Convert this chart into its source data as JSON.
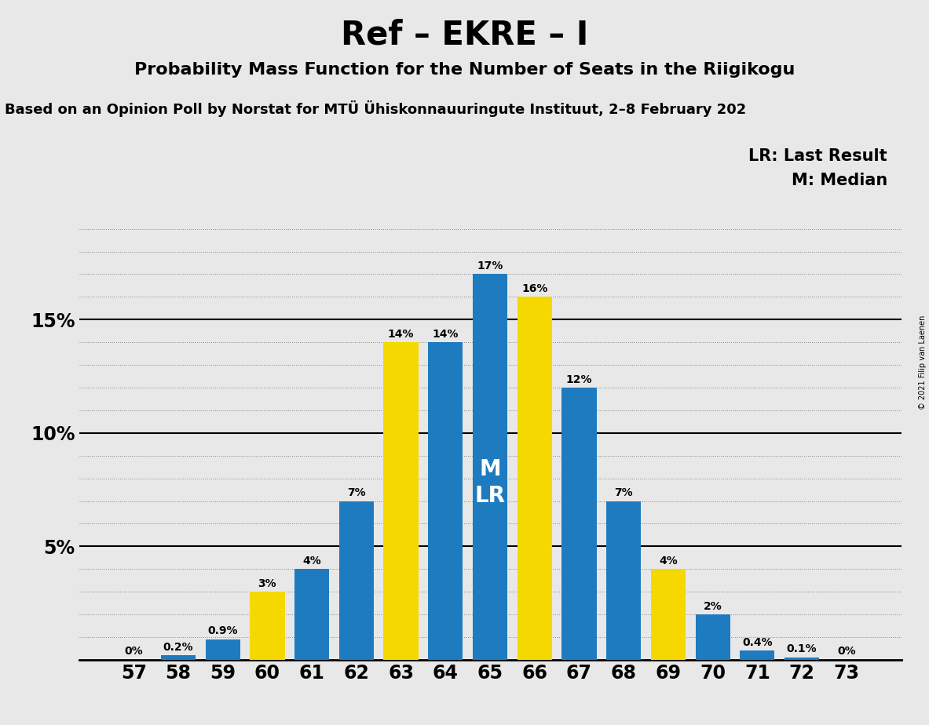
{
  "title": "Ref – EKRE – I",
  "subtitle": "Probability Mass Function for the Number of Seats in the Riigikogu",
  "source_line": "Based on an Opinion Poll by Norstat for MTÜ Ühiskonnauuringute Instituut, 2–8 February 202",
  "copyright": "© 2021 Filip van Laenen",
  "seats": [
    57,
    58,
    59,
    60,
    61,
    62,
    63,
    64,
    65,
    66,
    67,
    68,
    69,
    70,
    71,
    72,
    73
  ],
  "pmf_values": [
    0.0,
    0.2,
    0.9,
    3.0,
    4.0,
    7.0,
    14.0,
    14.0,
    17.0,
    16.0,
    12.0,
    7.0,
    4.0,
    2.0,
    0.4,
    0.1,
    0.0
  ],
  "pmf_labels": [
    "0%",
    "0.2%",
    "0.9%",
    "3%",
    "4%",
    "7%",
    "14%",
    "14%",
    "17%",
    "16%",
    "12%",
    "7%",
    "4%",
    "2%",
    "0.4%",
    "0.1%",
    "0%"
  ],
  "bar_colors": [
    "#1f7bbf",
    "#1f7bbf",
    "#1f7bbf",
    "#f5d800",
    "#1f7bbf",
    "#1f7bbf",
    "#f5d800",
    "#1f7bbf",
    "#1f7bbf",
    "#f5d800",
    "#1f7bbf",
    "#1f7bbf",
    "#f5d800",
    "#1f7bbf",
    "#1f7bbf",
    "#1f7bbf",
    "#1f7bbf"
  ],
  "median_seat": 65,
  "lr_seat": 65,
  "legend_lr": "LR: Last Result",
  "legend_m": "M: Median",
  "yticks": [
    5,
    10,
    15
  ],
  "ylim": [
    0,
    19.5
  ],
  "background_color": "#e8e8e8",
  "bar_blue": "#1f7bbf",
  "bar_yellow": "#f5d800",
  "title_fontsize": 30,
  "subtitle_fontsize": 16,
  "source_fontsize": 13,
  "legend_fontsize": 15
}
